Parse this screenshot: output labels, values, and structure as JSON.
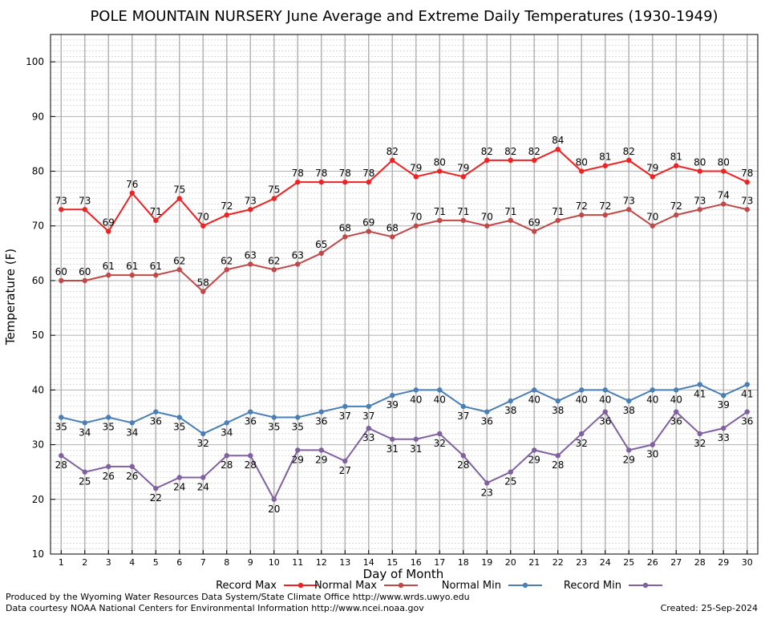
{
  "chart_data": {
    "type": "line",
    "title": "POLE MOUNTAIN NURSERY June Average and Extreme Daily Temperatures (1930-1949)",
    "xlabel": "Day of Month",
    "ylabel": "Temperature (F)",
    "ylim": [
      10,
      105
    ],
    "yticks": [
      10,
      20,
      30,
      40,
      50,
      60,
      70,
      80,
      90,
      100
    ],
    "x": [
      1,
      2,
      3,
      4,
      5,
      6,
      7,
      8,
      9,
      10,
      11,
      12,
      13,
      14,
      15,
      16,
      17,
      18,
      19,
      20,
      21,
      22,
      23,
      24,
      25,
      26,
      27,
      28,
      29,
      30
    ],
    "grid": true,
    "legend_placement": "bottom",
    "series": [
      {
        "name": "Record Max",
        "color": "#ee2222",
        "values": [
          73,
          73,
          69,
          76,
          71,
          75,
          70,
          72,
          73,
          75,
          78,
          78,
          78,
          78,
          82,
          79,
          80,
          79,
          82,
          82,
          82,
          84,
          80,
          81,
          82,
          79,
          81,
          80,
          80,
          78
        ]
      },
      {
        "name": "Normal Max",
        "color": "#c04848",
        "values": [
          60,
          60,
          61,
          61,
          61,
          62,
          58,
          62,
          63,
          62,
          63,
          65,
          68,
          69,
          68,
          70,
          71,
          71,
          70,
          71,
          69,
          71,
          72,
          72,
          73,
          70,
          72,
          73,
          74,
          73
        ]
      },
      {
        "name": "Normal Min",
        "color": "#4a7fb5",
        "values": [
          35,
          34,
          35,
          34,
          36,
          35,
          32,
          34,
          36,
          35,
          35,
          36,
          37,
          37,
          39,
          40,
          40,
          37,
          36,
          38,
          40,
          38,
          40,
          40,
          38,
          40,
          40,
          41,
          39,
          41
        ]
      },
      {
        "name": "Record Min",
        "color": "#8060a0",
        "values": [
          28,
          25,
          26,
          26,
          22,
          24,
          24,
          28,
          28,
          20,
          29,
          29,
          27,
          33,
          31,
          31,
          32,
          28,
          23,
          25,
          29,
          28,
          32,
          36,
          29,
          30,
          36,
          32,
          33,
          36
        ]
      }
    ]
  },
  "footer": {
    "produced_by": "Produced by the Wyoming Water Resources Data System/State Climate Office http://www.wrds.uwyo.edu",
    "data_courtesy": "Data courtesy NOAA National Centers for Environmental Information http://www.ncei.noaa.gov",
    "created": "Created:  25-Sep-2024"
  }
}
